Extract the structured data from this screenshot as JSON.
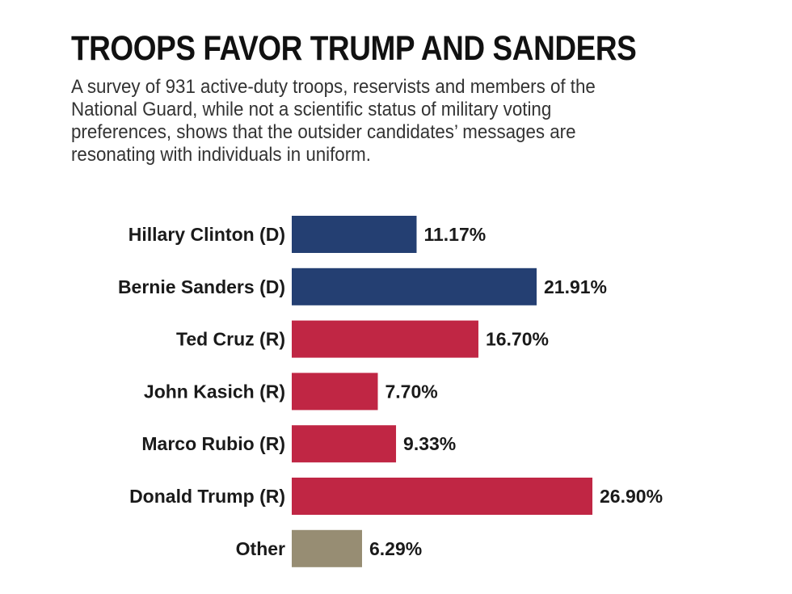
{
  "chart_data": {
    "type": "bar",
    "orientation": "horizontal",
    "title": "TROOPS FAVOR TRUMP AND SANDERS",
    "subtitle_lines": [
      "A survey of 931 active-duty troops, reservists and members of the",
      "National Guard, while not a scientific status of military voting",
      "preferences, shows that the outsider candidates’ messages are",
      "resonating with individuals in uniform."
    ],
    "categories": [
      "Hillary Clinton (D)",
      "Bernie Sanders (D)",
      "Ted Cruz (R)",
      "John Kasich (R)",
      "Marco Rubio (R)",
      "Donald Trump (R)",
      "Other"
    ],
    "values": [
      11.17,
      21.91,
      16.7,
      7.7,
      9.33,
      26.9,
      6.29
    ],
    "value_labels": [
      "11.17%",
      "21.91%",
      "16.70%",
      "7.70%",
      "9.33%",
      "26.90%",
      "6.29%"
    ],
    "parties": [
      "D",
      "D",
      "R",
      "R",
      "R",
      "R",
      "Other"
    ],
    "xlabel": "",
    "ylabel": "",
    "xlim": [
      0,
      30
    ],
    "grid": false,
    "legend": "none"
  },
  "colors": {
    "D": "#243f72",
    "R": "#c02644",
    "Other": "#978d73"
  }
}
